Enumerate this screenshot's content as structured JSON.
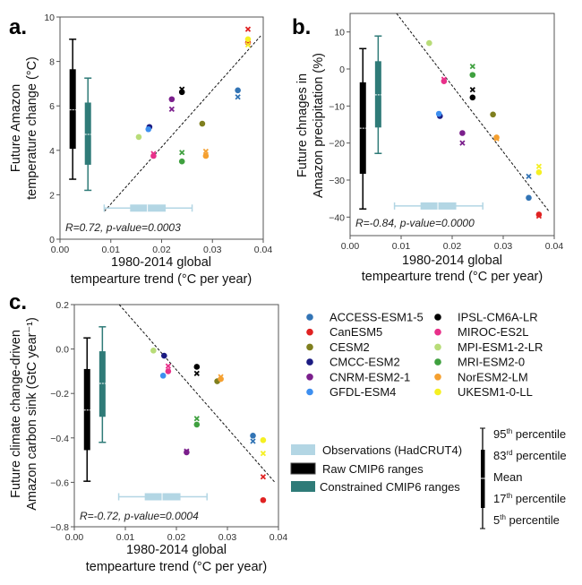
{
  "models": [
    {
      "name": "ACCESS-ESM1-5",
      "color": "#3274b5"
    },
    {
      "name": "CanESM5",
      "color": "#e02222"
    },
    {
      "name": "CESM2",
      "color": "#7f7f1e"
    },
    {
      "name": "CMCC-ESM2",
      "color": "#1b1b82"
    },
    {
      "name": "CNRM-ESM2-1",
      "color": "#7b1f8c"
    },
    {
      "name": "GFDL-ESM4",
      "color": "#3d8ff0"
    },
    {
      "name": "IPSL-CM6A-LR",
      "color": "#000000"
    },
    {
      "name": "MIROC-ES2L",
      "color": "#e8308a"
    },
    {
      "name": "MPI-ESM1-2-LR",
      "color": "#b8dc78"
    },
    {
      "name": "MRI-ESM2-0",
      "color": "#3fa03f"
    },
    {
      "name": "NorESM2-LM",
      "color": "#f5a030"
    },
    {
      "name": "UKESM1-0-LL",
      "color": "#f5f022"
    }
  ],
  "legend": {
    "observations": "Observations (HadCRUT4)",
    "raw": "Raw CMIP6 ranges",
    "constrained": "Constrained CMIP6 ranges",
    "percentiles": [
      {
        "n": "95",
        "sup": "th",
        "t": " percentile"
      },
      {
        "n": "83",
        "sup": "rd",
        "t": " percentile"
      },
      {
        "n": "Mean",
        "sup": "",
        "t": ""
      },
      {
        "n": "17",
        "sup": "th",
        "t": " percentile"
      },
      {
        "n": "5",
        "sup": "th",
        "t": " percentile"
      }
    ],
    "colors": {
      "observations": "#b3d6e4",
      "raw": "#000000",
      "constrained": "#2f7b78"
    }
  },
  "chart_data": [
    {
      "type": "scatter",
      "panel": "a.",
      "xlabel": [
        "1980-2014 global",
        "tempearture trend (°C per year)"
      ],
      "ylabel": [
        "Future Amazon",
        "temperature change (°C)"
      ],
      "xlim": [
        0,
        0.04
      ],
      "ylim": [
        0,
        10
      ],
      "xticks": [
        0,
        0.01,
        0.02,
        0.03,
        0.04
      ],
      "xtick_labels": [
        "0.00",
        "0.01",
        "0.02",
        "0.03",
        "0.04"
      ],
      "yticks": [
        0,
        2,
        4,
        6,
        8,
        10
      ],
      "ytick_labels": [
        "0",
        "2",
        "4",
        "6",
        "8",
        "10"
      ],
      "stat": "R=0.72, p-value=0.0003",
      "x": [
        0.035,
        0.037,
        0.028,
        0.0176,
        0.022,
        0.0174,
        0.024,
        0.0184,
        0.0155,
        0.024,
        0.0287,
        0.037
      ],
      "dots": [
        6.7,
        8.85,
        5.2,
        5.05,
        6.3,
        4.95,
        6.62,
        3.75,
        4.6,
        3.5,
        3.75,
        9.0
      ],
      "crosses": [
        6.4,
        9.45,
        null,
        null,
        5.85,
        null,
        6.75,
        3.85,
        null,
        3.9,
        3.95,
        8.75
      ],
      "raw": {
        "x": 0.0025,
        "p5": 2.7,
        "p17": 4.07,
        "mean": 5.82,
        "p83": 7.65,
        "p95": 9.0
      },
      "constrained": {
        "x": 0.0055,
        "p5": 2.2,
        "p17": 3.35,
        "mean": 4.72,
        "p83": 6.15,
        "p95": 7.25
      },
      "obs": {
        "y": 1.4,
        "p5": 0.0087,
        "p17": 0.0138,
        "mean": 0.0172,
        "p83": 0.0208,
        "p95": 0.026
      },
      "fit": [
        [
          0.0087,
          1.25
        ],
        [
          0.0395,
          9.15
        ]
      ]
    },
    {
      "type": "scatter",
      "panel": "b.",
      "xlabel": [
        "1980-2014 global",
        "tempearture trend (°C per year)"
      ],
      "ylabel": [
        "Future chnages in",
        "Amazon precipitation (%)"
      ],
      "xlim": [
        0,
        0.04
      ],
      "ylim": [
        -45,
        15
      ],
      "xticks": [
        0,
        0.01,
        0.02,
        0.03,
        0.04
      ],
      "xtick_labels": [
        "0.00",
        "0.01",
        "0.02",
        "0.03",
        "0.04"
      ],
      "yticks": [
        -40,
        -30,
        -20,
        -10,
        0,
        10
      ],
      "ytick_labels": [
        "−40",
        "−30",
        "−20",
        "−10",
        "0",
        "10"
      ],
      "stat": "R=-0.84, p-value=0.0000",
      "x": [
        0.035,
        0.037,
        0.028,
        0.0176,
        0.022,
        0.0174,
        0.024,
        0.0184,
        0.0155,
        0.024,
        0.0287,
        0.037
      ],
      "dots": [
        -34.8,
        -39.3,
        -12.3,
        -12.7,
        -17.3,
        -12.1,
        -7.7,
        -3.3,
        7.0,
        -1.6,
        -18.5,
        -27.9
      ],
      "crosses": [
        -29,
        -39.7,
        null,
        null,
        -20,
        null,
        -5.6,
        -2.8,
        null,
        0.7,
        -18.8,
        -26.3
      ],
      "raw": {
        "x": 0.0025,
        "p5": -37.8,
        "p17": -28.3,
        "mean": -16,
        "p83": -3.6,
        "p95": 5.5
      },
      "constrained": {
        "x": 0.0055,
        "p5": -22.8,
        "p17": -15.8,
        "mean": -7,
        "p83": 2.1,
        "p95": 8.9
      },
      "obs": {
        "y": -37,
        "p5": 0.0087,
        "p17": 0.0138,
        "mean": 0.0172,
        "p83": 0.0208,
        "p95": 0.026
      },
      "fit": [
        [
          0.0091,
          15
        ],
        [
          0.039,
          -38.5
        ]
      ]
    },
    {
      "type": "scatter",
      "panel": "c.",
      "xlabel": [
        "1980-2014 global",
        "tempearture trend (°C per year)"
      ],
      "ylabel": [
        "Future climate change-driven",
        "Amazon carbon sink (GtC year⁻¹)"
      ],
      "xlim": [
        0,
        0.04
      ],
      "ylim": [
        -0.8,
        0.2
      ],
      "xticks": [
        0,
        0.01,
        0.02,
        0.03,
        0.04
      ],
      "xtick_labels": [
        "0.00",
        "0.01",
        "0.02",
        "0.03",
        "0.04"
      ],
      "yticks": [
        -0.8,
        -0.6,
        -0.4,
        -0.2,
        0,
        0.2
      ],
      "ytick_labels": [
        "−0.8",
        "−0.6",
        "−0.4",
        "−0.2",
        "0.0",
        "0.2"
      ],
      "stat": "R=-0.72, p-value=0.0004",
      "x": [
        0.035,
        0.037,
        0.028,
        0.0176,
        0.022,
        0.0174,
        0.024,
        0.0184,
        0.0155,
        0.024,
        0.0287,
        0.037
      ],
      "dots": [
        -0.39,
        -0.68,
        -0.145,
        -0.03,
        -0.465,
        -0.12,
        -0.08,
        -0.1,
        -0.007,
        -0.34,
        -0.135,
        -0.41
      ],
      "crosses": [
        -0.415,
        -0.575,
        null,
        null,
        -0.46,
        null,
        -0.11,
        -0.077,
        null,
        -0.313,
        -0.125,
        -0.47
      ],
      "raw": {
        "x": 0.0025,
        "p5": -0.595,
        "p17": -0.455,
        "mean": -0.275,
        "p83": -0.09,
        "p95": 0.05
      },
      "constrained": {
        "x": 0.0055,
        "p5": -0.42,
        "p17": -0.305,
        "mean": -0.155,
        "p83": -0.01,
        "p95": 0.1
      },
      "obs": {
        "y": -0.665,
        "p5": 0.0087,
        "p17": 0.0138,
        "mean": 0.0172,
        "p83": 0.0208,
        "p95": 0.026
      },
      "fit": [
        [
          0.0088,
          0.2
        ],
        [
          0.0393,
          -0.6
        ]
      ]
    }
  ]
}
